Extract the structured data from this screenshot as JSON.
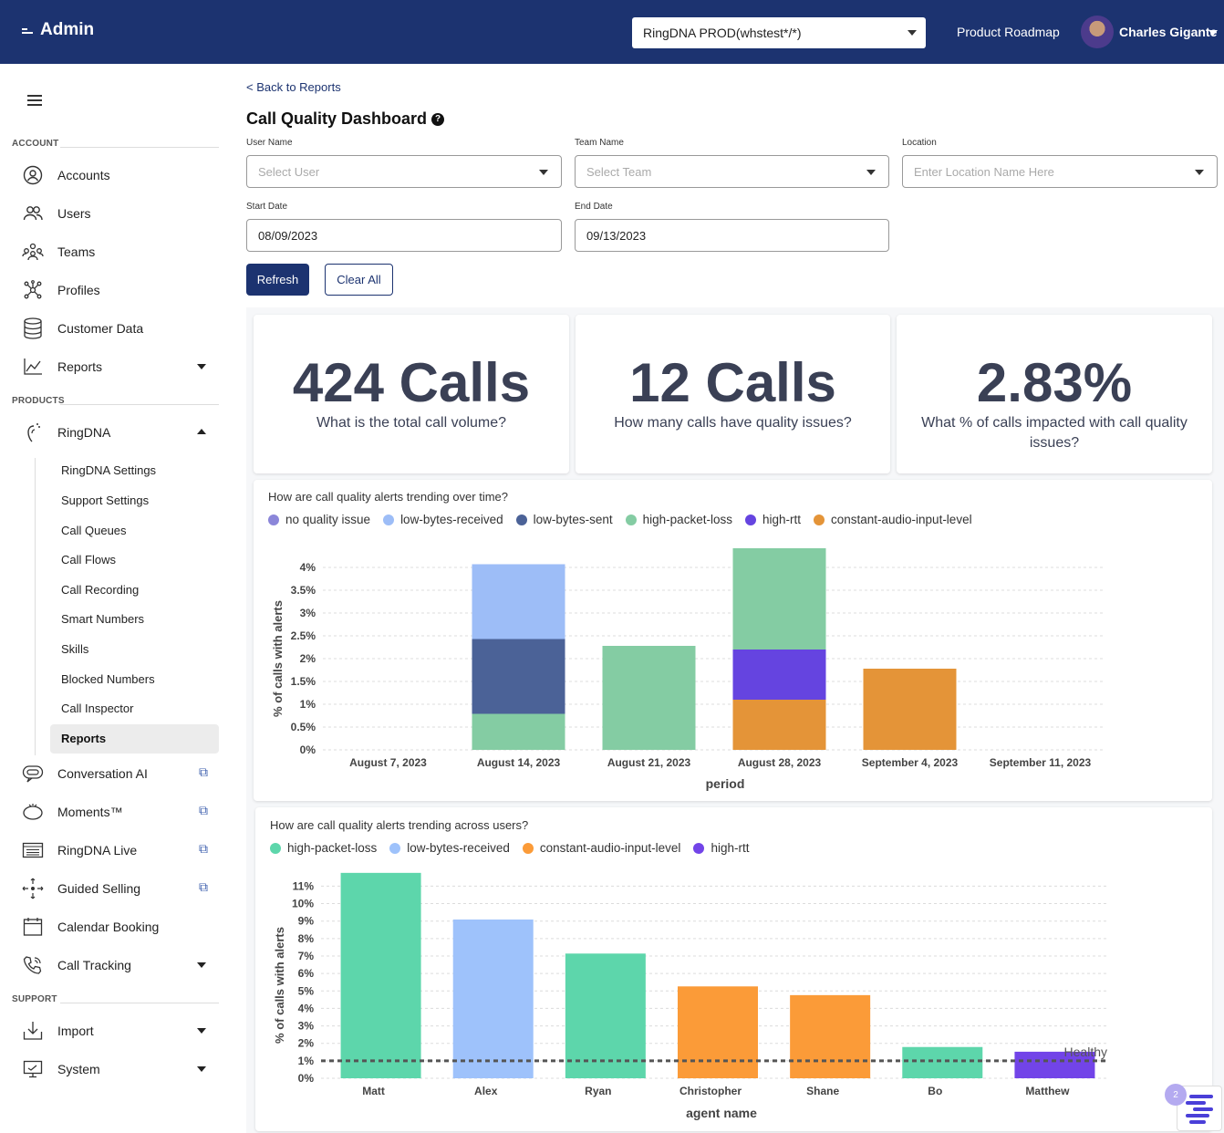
{
  "header": {
    "brand": "Admin",
    "env_select": "RingDNA PROD(whstest*/*)",
    "roadmap": "Product Roadmap",
    "user": "Charles Gigante"
  },
  "sidebar": {
    "sections": {
      "account": "ACCOUNT",
      "products": "PRODUCTS",
      "support": "SUPPORT"
    },
    "account_items": [
      {
        "label": "Accounts",
        "icon": "user-circle-icon"
      },
      {
        "label": "Users",
        "icon": "users-icon"
      },
      {
        "label": "Teams",
        "icon": "teams-icon"
      },
      {
        "label": "Profiles",
        "icon": "network-icon"
      },
      {
        "label": "Customer Data",
        "icon": "database-icon"
      },
      {
        "label": "Reports",
        "icon": "chart-line-icon"
      }
    ],
    "ringdna": "RingDNA",
    "ringdna_sub": [
      "RingDNA Settings",
      "Support Settings",
      "Call Queues",
      "Call Flows",
      "Call Recording",
      "Smart Numbers",
      "Skills",
      "Blocked Numbers",
      "Call Inspector"
    ],
    "active_sub": "Reports",
    "product_items": [
      {
        "label": "Conversation AI",
        "icon": "chat-bubble-icon"
      },
      {
        "label": "Moments™",
        "icon": "moments-icon"
      },
      {
        "label": "RingDNA Live",
        "icon": "live-icon"
      },
      {
        "label": "Guided Selling",
        "icon": "guided-icon"
      },
      {
        "label": "Calendar Booking",
        "icon": "calendar-icon"
      },
      {
        "label": "Call Tracking",
        "icon": "phone-icon"
      }
    ],
    "support_items": [
      {
        "label": "Import",
        "icon": "import-icon"
      },
      {
        "label": "System",
        "icon": "monitor-icon"
      }
    ]
  },
  "page": {
    "back": "< Back to Reports",
    "title": "Call Quality Dashboard",
    "filters": {
      "user_label": "User Name",
      "user_ph": "Select User",
      "team_label": "Team Name",
      "team_ph": "Select Team",
      "location_label": "Location",
      "location_ph": "Enter Location Name Here",
      "start_label": "Start Date",
      "start_val": "08/09/2023",
      "end_label": "End Date",
      "end_val": "09/13/2023"
    },
    "refresh": "Refresh",
    "clear": "Clear All"
  },
  "stats": [
    {
      "value": "424 Calls",
      "question": "What is the total call volume?"
    },
    {
      "value": "12 Calls",
      "question": "How many calls have quality issues?"
    },
    {
      "value": "2.83%",
      "question": "What % of calls impacted with call quality issues?"
    }
  ],
  "colors": {
    "no-quality-issue": "#8b86d9",
    "low-bytes-received": "#9dbdf7",
    "low-bytes-sent": "#4b6297",
    "high-packet-loss": "#84ccA3",
    "high-rtt": "#6544e0",
    "constant-audio-input-level": "#e49438",
    "hpl2": "#5dd6ab",
    "lbr2": "#9ec2fb",
    "caill2": "#fb9b38",
    "rtt2": "#7244e8"
  },
  "chart_data": [
    {
      "type": "bar",
      "stacked": true,
      "title": "How are call quality alerts trending over time?",
      "xlabel": "period",
      "ylabel": "% of calls with alerts",
      "ylim": [
        0,
        4.4
      ],
      "yticks": [
        "0%",
        "0.5%",
        "1%",
        "1.5%",
        "2%",
        "2.5%",
        "3%",
        "3.5%",
        "4%"
      ],
      "categories": [
        "August 7, 2023",
        "August 14, 2023",
        "August 21, 2023",
        "August 28, 2023",
        "September 4, 2023",
        "September 11, 2023"
      ],
      "series": [
        {
          "name": "no quality issue",
          "color": "#8b86d9",
          "values": [
            0,
            0,
            0,
            0,
            0,
            0
          ]
        },
        {
          "name": "constant-audio-input-level",
          "color": "#e49438",
          "values": [
            0,
            0,
            0,
            1.1,
            1.78,
            0
          ]
        },
        {
          "name": "high-rtt",
          "color": "#6544e0",
          "values": [
            0,
            0,
            0,
            1.1,
            0,
            0
          ]
        },
        {
          "name": "high-packet-loss",
          "color": "#84cca3",
          "values": [
            0,
            0.79,
            2.28,
            2.22,
            0,
            0
          ]
        },
        {
          "name": "low-bytes-sent",
          "color": "#4b6297",
          "values": [
            0,
            1.64,
            0,
            0,
            0,
            0
          ]
        },
        {
          "name": "low-bytes-received",
          "color": "#9dbdf7",
          "values": [
            0,
            1.64,
            0,
            0,
            0,
            0
          ]
        }
      ],
      "legend": [
        "no quality issue",
        "low-bytes-received",
        "low-bytes-sent",
        "high-packet-loss",
        "high-rtt",
        "constant-audio-input-level"
      ],
      "legend_colors": [
        "#8b86d9",
        "#9dbdf7",
        "#4b6297",
        "#84cca3",
        "#6544e0",
        "#e49438"
      ],
      "legend_position": "top-left",
      "grid": true
    },
    {
      "type": "bar",
      "title": "How are call quality alerts trending across users?",
      "xlabel": "agent name",
      "ylabel": "% of calls with alerts",
      "ylim": [
        0,
        11.7
      ],
      "yticks": [
        "0%",
        "1%",
        "2%",
        "3%",
        "4%",
        "5%",
        "6%",
        "7%",
        "8%",
        "9%",
        "10%",
        "11%"
      ],
      "categories": [
        "Matt",
        "Alex",
        "Ryan",
        "Christopher",
        "Shane",
        "Bo",
        "Matthew"
      ],
      "values": [
        11.76,
        9.09,
        7.14,
        5.26,
        4.76,
        1.79,
        1.52
      ],
      "bar_colors": [
        "#5dd6ab",
        "#9ec2fb",
        "#5dd6ab",
        "#fb9b38",
        "#fb9b38",
        "#5dd6ab",
        "#7244e8"
      ],
      "threshold": {
        "label": "Healthy",
        "value": 1
      },
      "legend": [
        "high-packet-loss",
        "low-bytes-received",
        "constant-audio-input-level",
        "high-rtt"
      ],
      "legend_colors": [
        "#5dd6ab",
        "#9ec2fb",
        "#fb9b38",
        "#7244e8"
      ],
      "legend_position": "top-left",
      "grid": true
    }
  ],
  "help_badge": "2"
}
